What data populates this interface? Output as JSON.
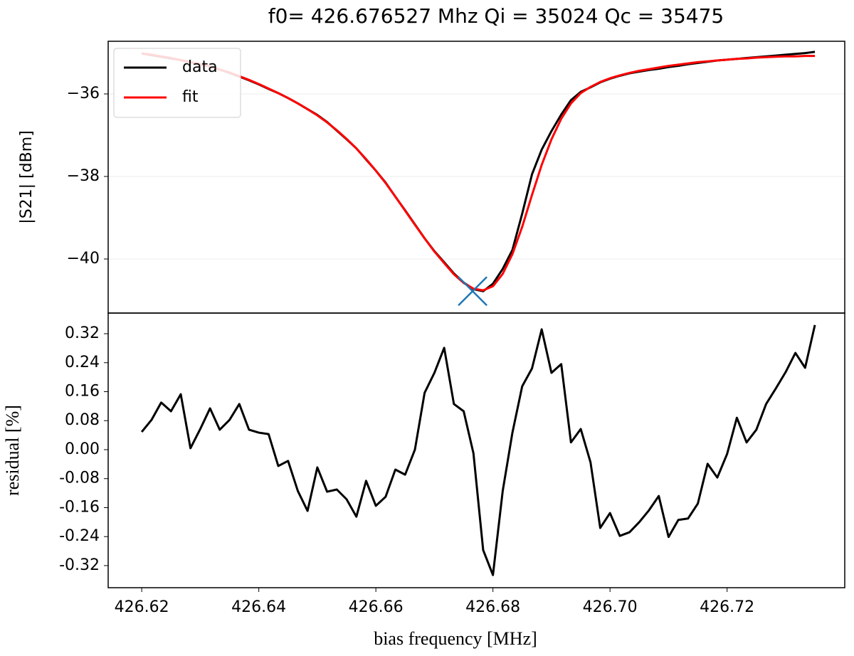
{
  "chart_data": [
    {
      "type": "line",
      "title": "f0= 426.676527 Mhz Qi = 35024 Qc = 35475",
      "y_label": "|S21| [dBm]",
      "x": [
        426.62,
        426.62167,
        426.62333,
        426.625,
        426.62667,
        426.62833,
        426.63,
        426.63167,
        426.63333,
        426.635,
        426.63667,
        426.63833,
        426.64,
        426.64167,
        426.64333,
        426.645,
        426.64667,
        426.64833,
        426.65,
        426.65167,
        426.65333,
        426.655,
        426.65667,
        426.65833,
        426.66,
        426.66167,
        426.66333,
        426.665,
        426.66667,
        426.66833,
        426.67,
        426.67167,
        426.67333,
        426.675,
        426.67667,
        426.67833,
        426.68,
        426.68167,
        426.68333,
        426.685,
        426.68667,
        426.68833,
        426.69,
        426.69167,
        426.69333,
        426.695,
        426.69667,
        426.69833,
        426.7,
        426.70167,
        426.70333,
        426.705,
        426.70667,
        426.70833,
        426.71,
        426.71167,
        426.71333,
        426.715,
        426.71667,
        426.71833,
        426.72,
        426.72167,
        426.72333,
        426.725,
        426.72667,
        426.72833,
        426.73,
        426.73167,
        426.73333,
        426.735
      ],
      "series": [
        {
          "name": "data",
          "color": "#000000",
          "values": [
            -35.02,
            -35.06,
            -35.1,
            -35.14,
            -35.18,
            -35.23,
            -35.28,
            -35.34,
            -35.41,
            -35.49,
            -35.58,
            -35.67,
            -35.77,
            -35.88,
            -35.98,
            -36.1,
            -36.23,
            -36.37,
            -36.51,
            -36.68,
            -36.89,
            -37.1,
            -37.32,
            -37.59,
            -37.86,
            -38.15,
            -38.49,
            -38.82,
            -39.16,
            -39.5,
            -39.81,
            -40.08,
            -40.35,
            -40.57,
            -40.73,
            -40.78,
            -40.6,
            -40.24,
            -39.78,
            -38.9,
            -37.95,
            -37.35,
            -36.9,
            -36.5,
            -36.15,
            -35.95,
            -35.84,
            -35.72,
            -35.63,
            -35.56,
            -35.5,
            -35.46,
            -35.42,
            -35.39,
            -35.35,
            -35.32,
            -35.28,
            -35.25,
            -35.22,
            -35.19,
            -35.17,
            -35.15,
            -35.13,
            -35.11,
            -35.09,
            -35.07,
            -35.05,
            -35.03,
            -35.01,
            -34.98
          ]
        },
        {
          "name": "fit",
          "color": "#ff0000",
          "values": [
            -35.02,
            -35.05,
            -35.09,
            -35.13,
            -35.18,
            -35.23,
            -35.28,
            -35.34,
            -35.41,
            -35.48,
            -35.57,
            -35.66,
            -35.76,
            -35.87,
            -35.98,
            -36.1,
            -36.23,
            -36.37,
            -36.52,
            -36.69,
            -36.88,
            -37.09,
            -37.32,
            -37.58,
            -37.86,
            -38.16,
            -38.49,
            -38.83,
            -39.17,
            -39.5,
            -39.82,
            -40.1,
            -40.37,
            -40.58,
            -40.72,
            -40.76,
            -40.66,
            -40.36,
            -39.88,
            -39.22,
            -38.45,
            -37.72,
            -37.1,
            -36.6,
            -36.23,
            -35.98,
            -35.83,
            -35.71,
            -35.62,
            -35.55,
            -35.49,
            -35.44,
            -35.4,
            -35.36,
            -35.32,
            -35.29,
            -35.26,
            -35.23,
            -35.21,
            -35.19,
            -35.17,
            -35.15,
            -35.14,
            -35.12,
            -35.11,
            -35.1,
            -35.09,
            -35.09,
            -35.08,
            -35.08
          ]
        }
      ],
      "marker": {
        "x": 426.676527,
        "y": -40.78,
        "color": "#1f77b4"
      },
      "xlim": [
        426.61427,
        426.7401
      ],
      "ylim": [
        -41.31,
        -34.724
      ],
      "yticks": [
        {
          "value": -40,
          "label": "−40"
        },
        {
          "value": -38,
          "label": "−38"
        },
        {
          "value": -36,
          "label": "−36"
        }
      ],
      "grid": true,
      "legend": "upper left"
    },
    {
      "type": "line",
      "y_label": "residual [%]",
      "x_label": "bias frequency [MHz]",
      "x": [
        426.62,
        426.62167,
        426.62333,
        426.625,
        426.62667,
        426.62833,
        426.63,
        426.63167,
        426.63333,
        426.635,
        426.63667,
        426.63833,
        426.64,
        426.64167,
        426.64333,
        426.645,
        426.64667,
        426.64833,
        426.65,
        426.65167,
        426.65333,
        426.655,
        426.65667,
        426.65833,
        426.66,
        426.66167,
        426.66333,
        426.665,
        426.66667,
        426.66833,
        426.67,
        426.67167,
        426.67333,
        426.675,
        426.67667,
        426.67833,
        426.68,
        426.68167,
        426.68333,
        426.685,
        426.68667,
        426.68833,
        426.69,
        426.69167,
        426.69333,
        426.695,
        426.69667,
        426.69833,
        426.7,
        426.70167,
        426.70333,
        426.705,
        426.70667,
        426.70833,
        426.71,
        426.71167,
        426.71333,
        426.715,
        426.71667,
        426.71833,
        426.72,
        426.72167,
        426.72333,
        426.725,
        426.72667,
        426.72833,
        426.73,
        426.73167,
        426.73333,
        426.735
      ],
      "values": [
        0.049,
        0.082,
        0.13,
        0.106,
        0.153,
        0.004,
        0.057,
        0.114,
        0.055,
        0.082,
        0.126,
        0.055,
        0.047,
        0.043,
        -0.045,
        -0.031,
        -0.114,
        -0.169,
        -0.049,
        -0.116,
        -0.11,
        -0.137,
        -0.185,
        -0.086,
        -0.155,
        -0.13,
        -0.055,
        -0.069,
        0.0,
        0.157,
        0.212,
        0.281,
        0.126,
        0.106,
        -0.01,
        -0.277,
        -0.346,
        -0.114,
        0.047,
        0.175,
        0.224,
        0.332,
        0.212,
        0.236,
        0.02,
        0.057,
        -0.035,
        -0.216,
        -0.175,
        -0.238,
        -0.228,
        -0.2,
        -0.167,
        -0.128,
        -0.241,
        -0.194,
        -0.19,
        -0.149,
        -0.039,
        -0.077,
        -0.012,
        0.088,
        0.02,
        0.055,
        0.126,
        0.169,
        0.214,
        0.267,
        0.226,
        0.344
      ],
      "color": "#000000",
      "xlim": [
        426.61427,
        426.7401
      ],
      "ylim": [
        -0.381,
        0.377
      ],
      "xticks": [
        426.62,
        426.64,
        426.66,
        426.68,
        {
          "value": 426.7,
          "label": "426.70"
        },
        426.72
      ],
      "yticks": [
        {
          "value": -0.32,
          "label": "-0.32"
        },
        {
          "value": -0.24,
          "label": "-0.24"
        },
        {
          "value": -0.16,
          "label": "-0.16"
        },
        {
          "value": -0.08,
          "label": "-0.08"
        },
        {
          "value": 0,
          "label": "0.00"
        },
        0.08,
        0.16,
        0.24,
        0.32
      ],
      "grid": false
    }
  ]
}
